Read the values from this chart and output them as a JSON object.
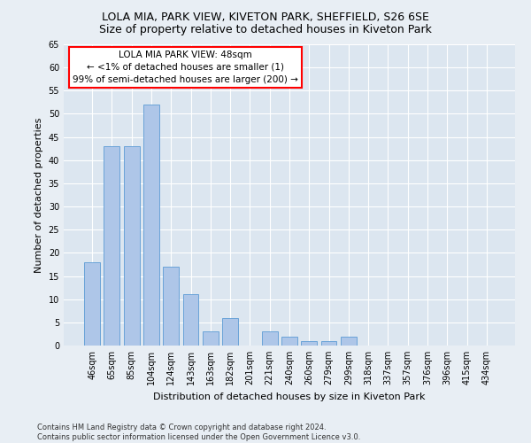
{
  "title1": "LOLA MIA, PARK VIEW, KIVETON PARK, SHEFFIELD, S26 6SE",
  "title2": "Size of property relative to detached houses in Kiveton Park",
  "xlabel": "Distribution of detached houses by size in Kiveton Park",
  "ylabel": "Number of detached properties",
  "categories": [
    "46sqm",
    "65sqm",
    "85sqm",
    "104sqm",
    "124sqm",
    "143sqm",
    "163sqm",
    "182sqm",
    "201sqm",
    "221sqm",
    "240sqm",
    "260sqm",
    "279sqm",
    "299sqm",
    "318sqm",
    "337sqm",
    "357sqm",
    "376sqm",
    "396sqm",
    "415sqm",
    "434sqm"
  ],
  "values": [
    18,
    43,
    43,
    52,
    17,
    11,
    3,
    6,
    0,
    3,
    2,
    1,
    1,
    2,
    0,
    0,
    0,
    0,
    0,
    0,
    0
  ],
  "bar_color": "#aec6e8",
  "bar_edge_color": "#5b9bd5",
  "annotation_box_text": "LOLA MIA PARK VIEW: 48sqm\n← <1% of detached houses are smaller (1)\n99% of semi-detached houses are larger (200) →",
  "annotation_box_color": "white",
  "annotation_box_edge_color": "red",
  "background_color": "#e8eef4",
  "plot_bg_color": "#dce6f0",
  "grid_color": "white",
  "ylim": [
    0,
    65
  ],
  "yticks": [
    0,
    5,
    10,
    15,
    20,
    25,
    30,
    35,
    40,
    45,
    50,
    55,
    60,
    65
  ],
  "footer_text": "Contains HM Land Registry data © Crown copyright and database right 2024.\nContains public sector information licensed under the Open Government Licence v3.0.",
  "title_fontsize": 9,
  "subtitle_fontsize": 9,
  "xlabel_fontsize": 8,
  "ylabel_fontsize": 8,
  "tick_fontsize": 7,
  "annotation_fontsize": 7.5,
  "footer_fontsize": 6
}
